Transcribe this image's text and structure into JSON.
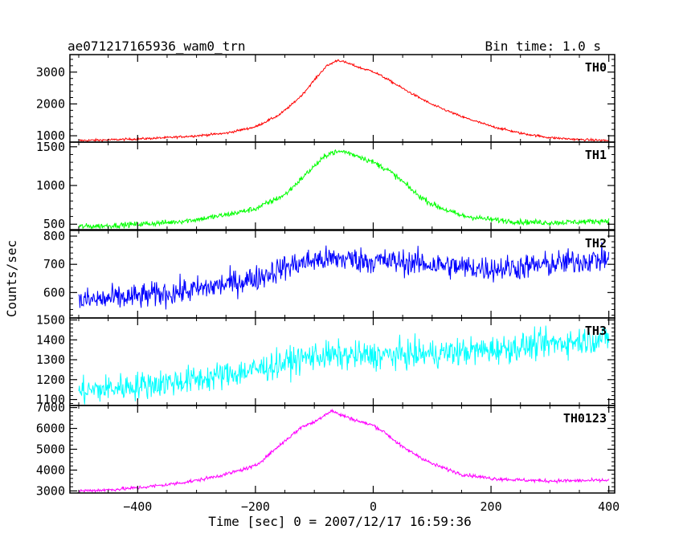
{
  "header": {
    "title": "ae071217165936_wam0_trn",
    "bin_time": "Bin time: 1.0 s"
  },
  "chart_data": {
    "type": "line",
    "title": "ae071217165936_wam0_trn",
    "xlabel": "Time [sec] 0 = 2007/12/17 16:59:36",
    "ylabel": "Counts/sec",
    "xlim": [
      -515,
      410
    ],
    "x_ticks": [
      -400,
      -200,
      0,
      200,
      400
    ],
    "x_tick_labels": [
      "−400",
      "−200",
      "0",
      "200",
      "400"
    ],
    "panels": [
      {
        "name": "TH0",
        "color": "#ff0000",
        "ylim": [
          800,
          3550
        ],
        "y_ticks": [
          1000,
          2000,
          3000
        ],
        "x": [
          -500,
          -450,
          -400,
          -350,
          -300,
          -250,
          -200,
          -160,
          -140,
          -120,
          -100,
          -80,
          -60,
          -40,
          -20,
          0,
          20,
          40,
          60,
          80,
          100,
          150,
          200,
          250,
          300,
          350,
          400
        ],
        "y": [
          850,
          870,
          900,
          940,
          1000,
          1080,
          1280,
          1650,
          1950,
          2300,
          2750,
          3180,
          3380,
          3260,
          3120,
          3020,
          2820,
          2600,
          2380,
          2180,
          1980,
          1600,
          1300,
          1080,
          940,
          880,
          850
        ],
        "noise": 25
      },
      {
        "name": "TH1",
        "color": "#00ff00",
        "ylim": [
          430,
          1560
        ],
        "y_ticks": [
          500,
          1000,
          1500
        ],
        "x": [
          -500,
          -450,
          -400,
          -350,
          -300,
          -250,
          -200,
          -150,
          -100,
          -75,
          -50,
          -25,
          0,
          25,
          50,
          75,
          100,
          125,
          150,
          200,
          250,
          300,
          350,
          400
        ],
        "y": [
          470,
          480,
          500,
          520,
          560,
          620,
          700,
          880,
          1250,
          1420,
          1440,
          1380,
          1300,
          1200,
          1050,
          880,
          760,
          680,
          610,
          560,
          530,
          520,
          530,
          545
        ],
        "noise": 25
      },
      {
        "name": "TH2",
        "color": "#0000ff",
        "ylim": [
          510,
          820
        ],
        "y_ticks": [
          600,
          700,
          800
        ],
        "x": [
          -500,
          -400,
          -300,
          -200,
          -150,
          -100,
          -50,
          0,
          50,
          100,
          150,
          200,
          250,
          300,
          350,
          400
        ],
        "y": [
          570,
          585,
          610,
          650,
          690,
          715,
          720,
          712,
          708,
          700,
          690,
          685,
          690,
          700,
          712,
          720
        ],
        "noise": 32
      },
      {
        "name": "TH3",
        "color": "#00ffff",
        "ylim": [
          1070,
          1510
        ],
        "y_ticks": [
          1100,
          1200,
          1300,
          1400,
          1500
        ],
        "x": [
          -500,
          -400,
          -300,
          -200,
          -100,
          0,
          100,
          200,
          300,
          400
        ],
        "y": [
          1140,
          1170,
          1200,
          1250,
          1320,
          1320,
          1330,
          1350,
          1380,
          1410
        ],
        "noise": 50
      },
      {
        "name": "TH0123",
        "color": "#ff00ff",
        "ylim": [
          2900,
          7100
        ],
        "y_ticks": [
          3000,
          4000,
          5000,
          6000,
          7000
        ],
        "x": [
          -500,
          -450,
          -400,
          -350,
          -300,
          -250,
          -200,
          -150,
          -120,
          -100,
          -80,
          -70,
          -60,
          -40,
          -20,
          0,
          20,
          50,
          100,
          150,
          200,
          250,
          300,
          350,
          400
        ],
        "y": [
          3000,
          3050,
          3150,
          3300,
          3500,
          3800,
          4200,
          5400,
          6100,
          6300,
          6700,
          6850,
          6700,
          6500,
          6300,
          6150,
          5800,
          5100,
          4300,
          3800,
          3600,
          3520,
          3480,
          3490,
          3510
        ],
        "noise": 60
      }
    ]
  }
}
